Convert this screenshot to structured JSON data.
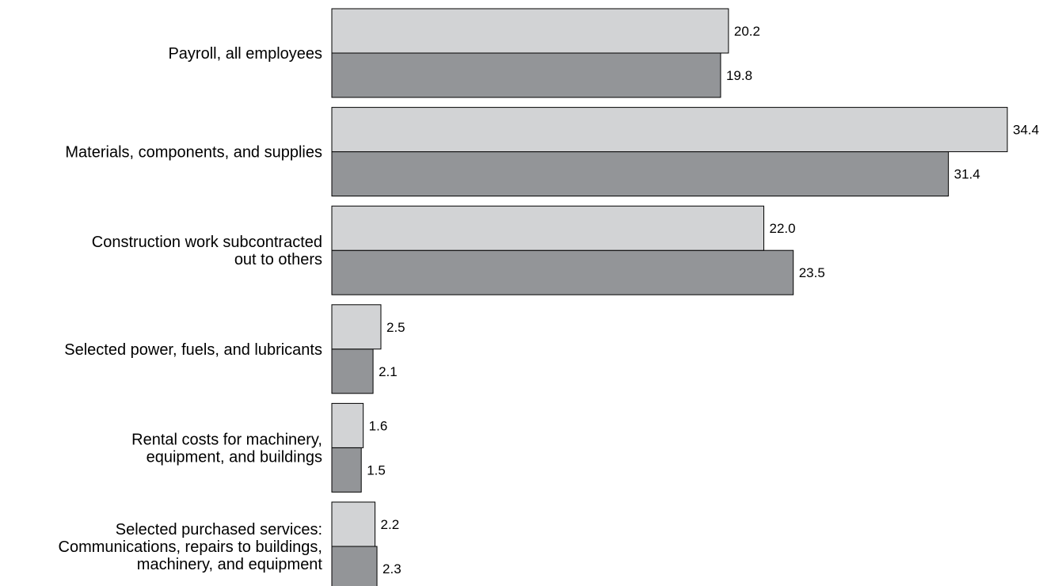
{
  "chart_data": {
    "type": "bar",
    "orientation": "horizontal",
    "categories": [
      [
        "Payroll, all employees"
      ],
      [
        "Materials, components, and supplies"
      ],
      [
        "Construction work subcontracted",
        "out to others"
      ],
      [
        "Selected power, fuels, and lubricants"
      ],
      [
        "Rental costs for machinery,",
        "equipment, and buildings"
      ],
      [
        "Selected purchased services:",
        "Communications, repairs to buildings,",
        "machinery, and equipment"
      ]
    ],
    "series": [
      {
        "values": [
          20.2,
          34.4,
          22.0,
          2.5,
          1.6,
          2.2
        ],
        "color": "#d2d3d5"
      },
      {
        "values": [
          19.8,
          31.4,
          23.5,
          2.1,
          1.5,
          2.3
        ],
        "color": "#939598"
      }
    ],
    "value_labels": [
      [
        "20.2",
        "34.4",
        "22.0",
        "2.5",
        "1.6",
        "2.2"
      ],
      [
        "19.8",
        "31.4",
        "23.5",
        "2.1",
        "1.5",
        "2.3"
      ]
    ],
    "xlim": [
      0,
      34.4
    ],
    "grid": false,
    "legend": "none"
  }
}
